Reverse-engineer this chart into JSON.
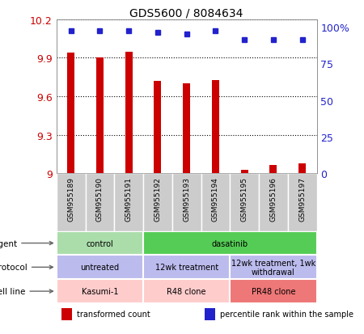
{
  "title": "GDS5600 / 8084634",
  "samples": [
    "GSM955189",
    "GSM955190",
    "GSM955191",
    "GSM955192",
    "GSM955193",
    "GSM955194",
    "GSM955195",
    "GSM955196",
    "GSM955197"
  ],
  "transformed_counts": [
    9.94,
    9.905,
    9.945,
    9.72,
    9.7,
    9.725,
    9.03,
    9.065,
    9.075
  ],
  "percentile_ranks": [
    97,
    97,
    97,
    96,
    95,
    97,
    91,
    91,
    91
  ],
  "ylim": [
    9.0,
    10.2
  ],
  "yticks": [
    9.0,
    9.3,
    9.6,
    9.9,
    10.2
  ],
  "ytick_labels": [
    "9",
    "9.3",
    "9.6",
    "9.9",
    "10.2"
  ],
  "y2ticks": [
    0,
    25,
    50,
    75,
    100
  ],
  "y2tick_labels": [
    "0",
    "25",
    "50",
    "75",
    "100%"
  ],
  "bar_color": "#cc0000",
  "dot_color": "#2222cc",
  "agent_groups": [
    {
      "label": "control",
      "start": 0,
      "end": 3,
      "color": "#aaddaa"
    },
    {
      "label": "dasatinib",
      "start": 3,
      "end": 9,
      "color": "#55cc55"
    }
  ],
  "protocol_groups": [
    {
      "label": "untreated",
      "start": 0,
      "end": 3,
      "color": "#bbbbee"
    },
    {
      "label": "12wk treatment",
      "start": 3,
      "end": 6,
      "color": "#bbbbee"
    },
    {
      "label": "12wk treatment, 1wk\nwithdrawal",
      "start": 6,
      "end": 9,
      "color": "#bbbbee"
    }
  ],
  "cell_line_groups": [
    {
      "label": "Kasumi-1",
      "start": 0,
      "end": 3,
      "color": "#ffcccc"
    },
    {
      "label": "R48 clone",
      "start": 3,
      "end": 6,
      "color": "#ffcccc"
    },
    {
      "label": "PR48 clone",
      "start": 6,
      "end": 9,
      "color": "#ee7777"
    }
  ],
  "row_labels": [
    "agent",
    "protocol",
    "cell line"
  ],
  "legend_items": [
    {
      "label": "transformed count",
      "color": "#cc0000"
    },
    {
      "label": "percentile rank within the sample",
      "color": "#2222cc"
    }
  ],
  "tick_label_color_left": "#cc0000",
  "tick_label_color_right": "#2222cc",
  "sample_box_color": "#cccccc",
  "plot_bg": "#ffffff",
  "grid_color": "#000000"
}
